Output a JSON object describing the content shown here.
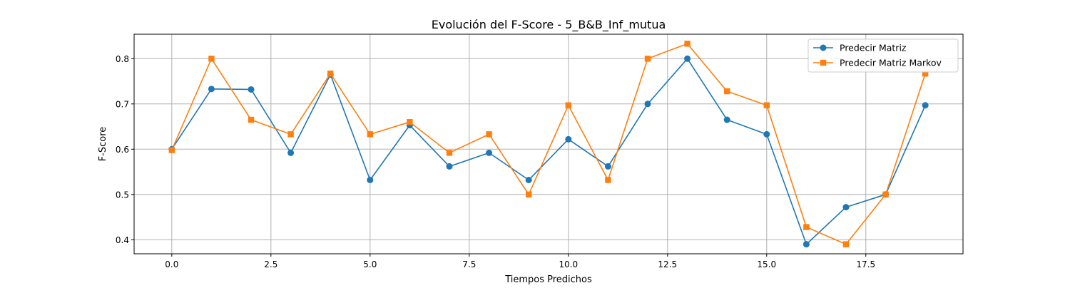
{
  "chart_data": {
    "type": "line",
    "title": "Evolución del F-Score - 5_B&B_Inf_mutua",
    "xlabel": "Tiempos Predichos",
    "ylabel": "F-Score",
    "xlim": [
      -0.95,
      19.95
    ],
    "ylim": [
      0.369,
      0.854
    ],
    "xticks": [
      0,
      2.5,
      5,
      7.5,
      10,
      12.5,
      15,
      17.5
    ],
    "xtick_labels": [
      "0.0",
      "2.5",
      "5.0",
      "7.5",
      "10.0",
      "12.5",
      "15.0",
      "17.5"
    ],
    "yticks": [
      0.4,
      0.5,
      0.6,
      0.7,
      0.8
    ],
    "ytick_labels": [
      "0.4",
      "0.5",
      "0.6",
      "0.7",
      "0.8"
    ],
    "grid": true,
    "legend_position": "top-right",
    "x": [
      0,
      1,
      2,
      3,
      4,
      5,
      6,
      7,
      8,
      9,
      10,
      11,
      12,
      13,
      14,
      15,
      16,
      17,
      18,
      19
    ],
    "series": [
      {
        "name": "Predecir Matriz",
        "color": "#1f77b4",
        "marker": "circle",
        "values": [
          0.6,
          0.733,
          0.732,
          0.592,
          0.765,
          0.532,
          0.653,
          0.562,
          0.592,
          0.532,
          0.622,
          0.562,
          0.7,
          0.8,
          0.665,
          0.633,
          0.39,
          0.472,
          0.5,
          0.697
        ]
      },
      {
        "name": "Predecir Matriz Markov",
        "color": "#ff7f0e",
        "marker": "square",
        "values": [
          0.598,
          0.8,
          0.665,
          0.633,
          0.767,
          0.633,
          0.66,
          0.592,
          0.633,
          0.5,
          0.697,
          0.532,
          0.8,
          0.833,
          0.728,
          0.697,
          0.428,
          0.39,
          0.5,
          0.767
        ]
      }
    ]
  }
}
